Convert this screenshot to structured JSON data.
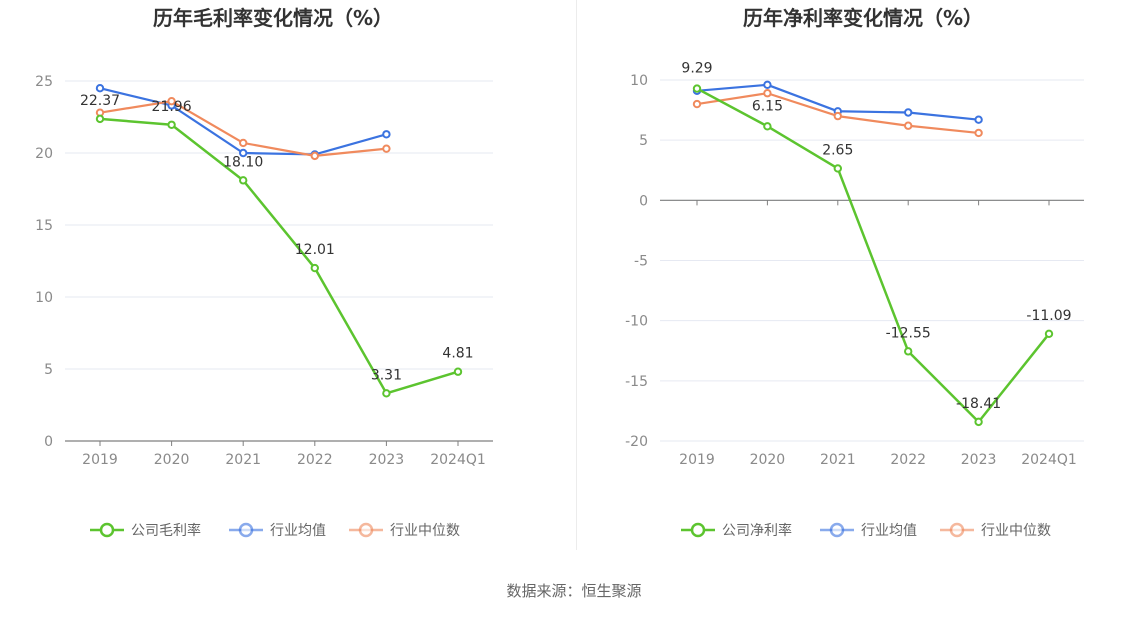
{
  "source": "数据来源：恒生聚源",
  "chart_data": [
    {
      "type": "line",
      "title": "历年毛利率变化情况（%）",
      "categories": [
        "2019",
        "2020",
        "2021",
        "2022",
        "2023",
        "2024Q1"
      ],
      "ylim": [
        0,
        25
      ],
      "yticks": [
        "25",
        "20",
        "15",
        "10",
        "5",
        "0"
      ],
      "ytick_values": [
        25,
        20,
        15,
        10,
        5,
        0
      ],
      "grid": true,
      "legend_position": "bottom",
      "series": [
        {
          "name": "公司毛利率",
          "color": "#5cc42f",
          "values": [
            22.37,
            21.96,
            18.1,
            12.01,
            3.31,
            4.81
          ],
          "labels": [
            "22.37",
            "21.96",
            "18.10",
            "12.01",
            "3.31",
            "4.81"
          ]
        },
        {
          "name": "行业均值",
          "color": "#3b73e0",
          "values": [
            24.5,
            23.3,
            20.0,
            19.9,
            21.3,
            null
          ]
        },
        {
          "name": "行业中位数",
          "color": "#f08a5d",
          "values": [
            22.8,
            23.6,
            20.7,
            19.8,
            20.3,
            null
          ]
        }
      ]
    },
    {
      "type": "line",
      "title": "历年净利率变化情况（%）",
      "categories": [
        "2019",
        "2020",
        "2021",
        "2022",
        "2023",
        "2024Q1"
      ],
      "ylim": [
        -20,
        10
      ],
      "yticks": [
        "10",
        "5",
        "0",
        "-5",
        "-10",
        "-15",
        "-20"
      ],
      "ytick_values": [
        10,
        5,
        0,
        -5,
        -10,
        -15,
        -20
      ],
      "grid": true,
      "legend_position": "bottom",
      "series": [
        {
          "name": "公司净利率",
          "color": "#5cc42f",
          "values": [
            9.29,
            6.15,
            2.65,
            -12.55,
            -18.41,
            -11.09
          ],
          "labels": [
            "9.29",
            "6.15",
            "2.65",
            "-12.55",
            "-18.41",
            "-11.09"
          ]
        },
        {
          "name": "行业均值",
          "color": "#3b73e0",
          "values": [
            9.1,
            9.6,
            7.4,
            7.3,
            6.7,
            null
          ]
        },
        {
          "name": "行业中位数",
          "color": "#f08a5d",
          "values": [
            8.0,
            8.9,
            7.0,
            6.2,
            5.6,
            null
          ]
        }
      ]
    }
  ]
}
